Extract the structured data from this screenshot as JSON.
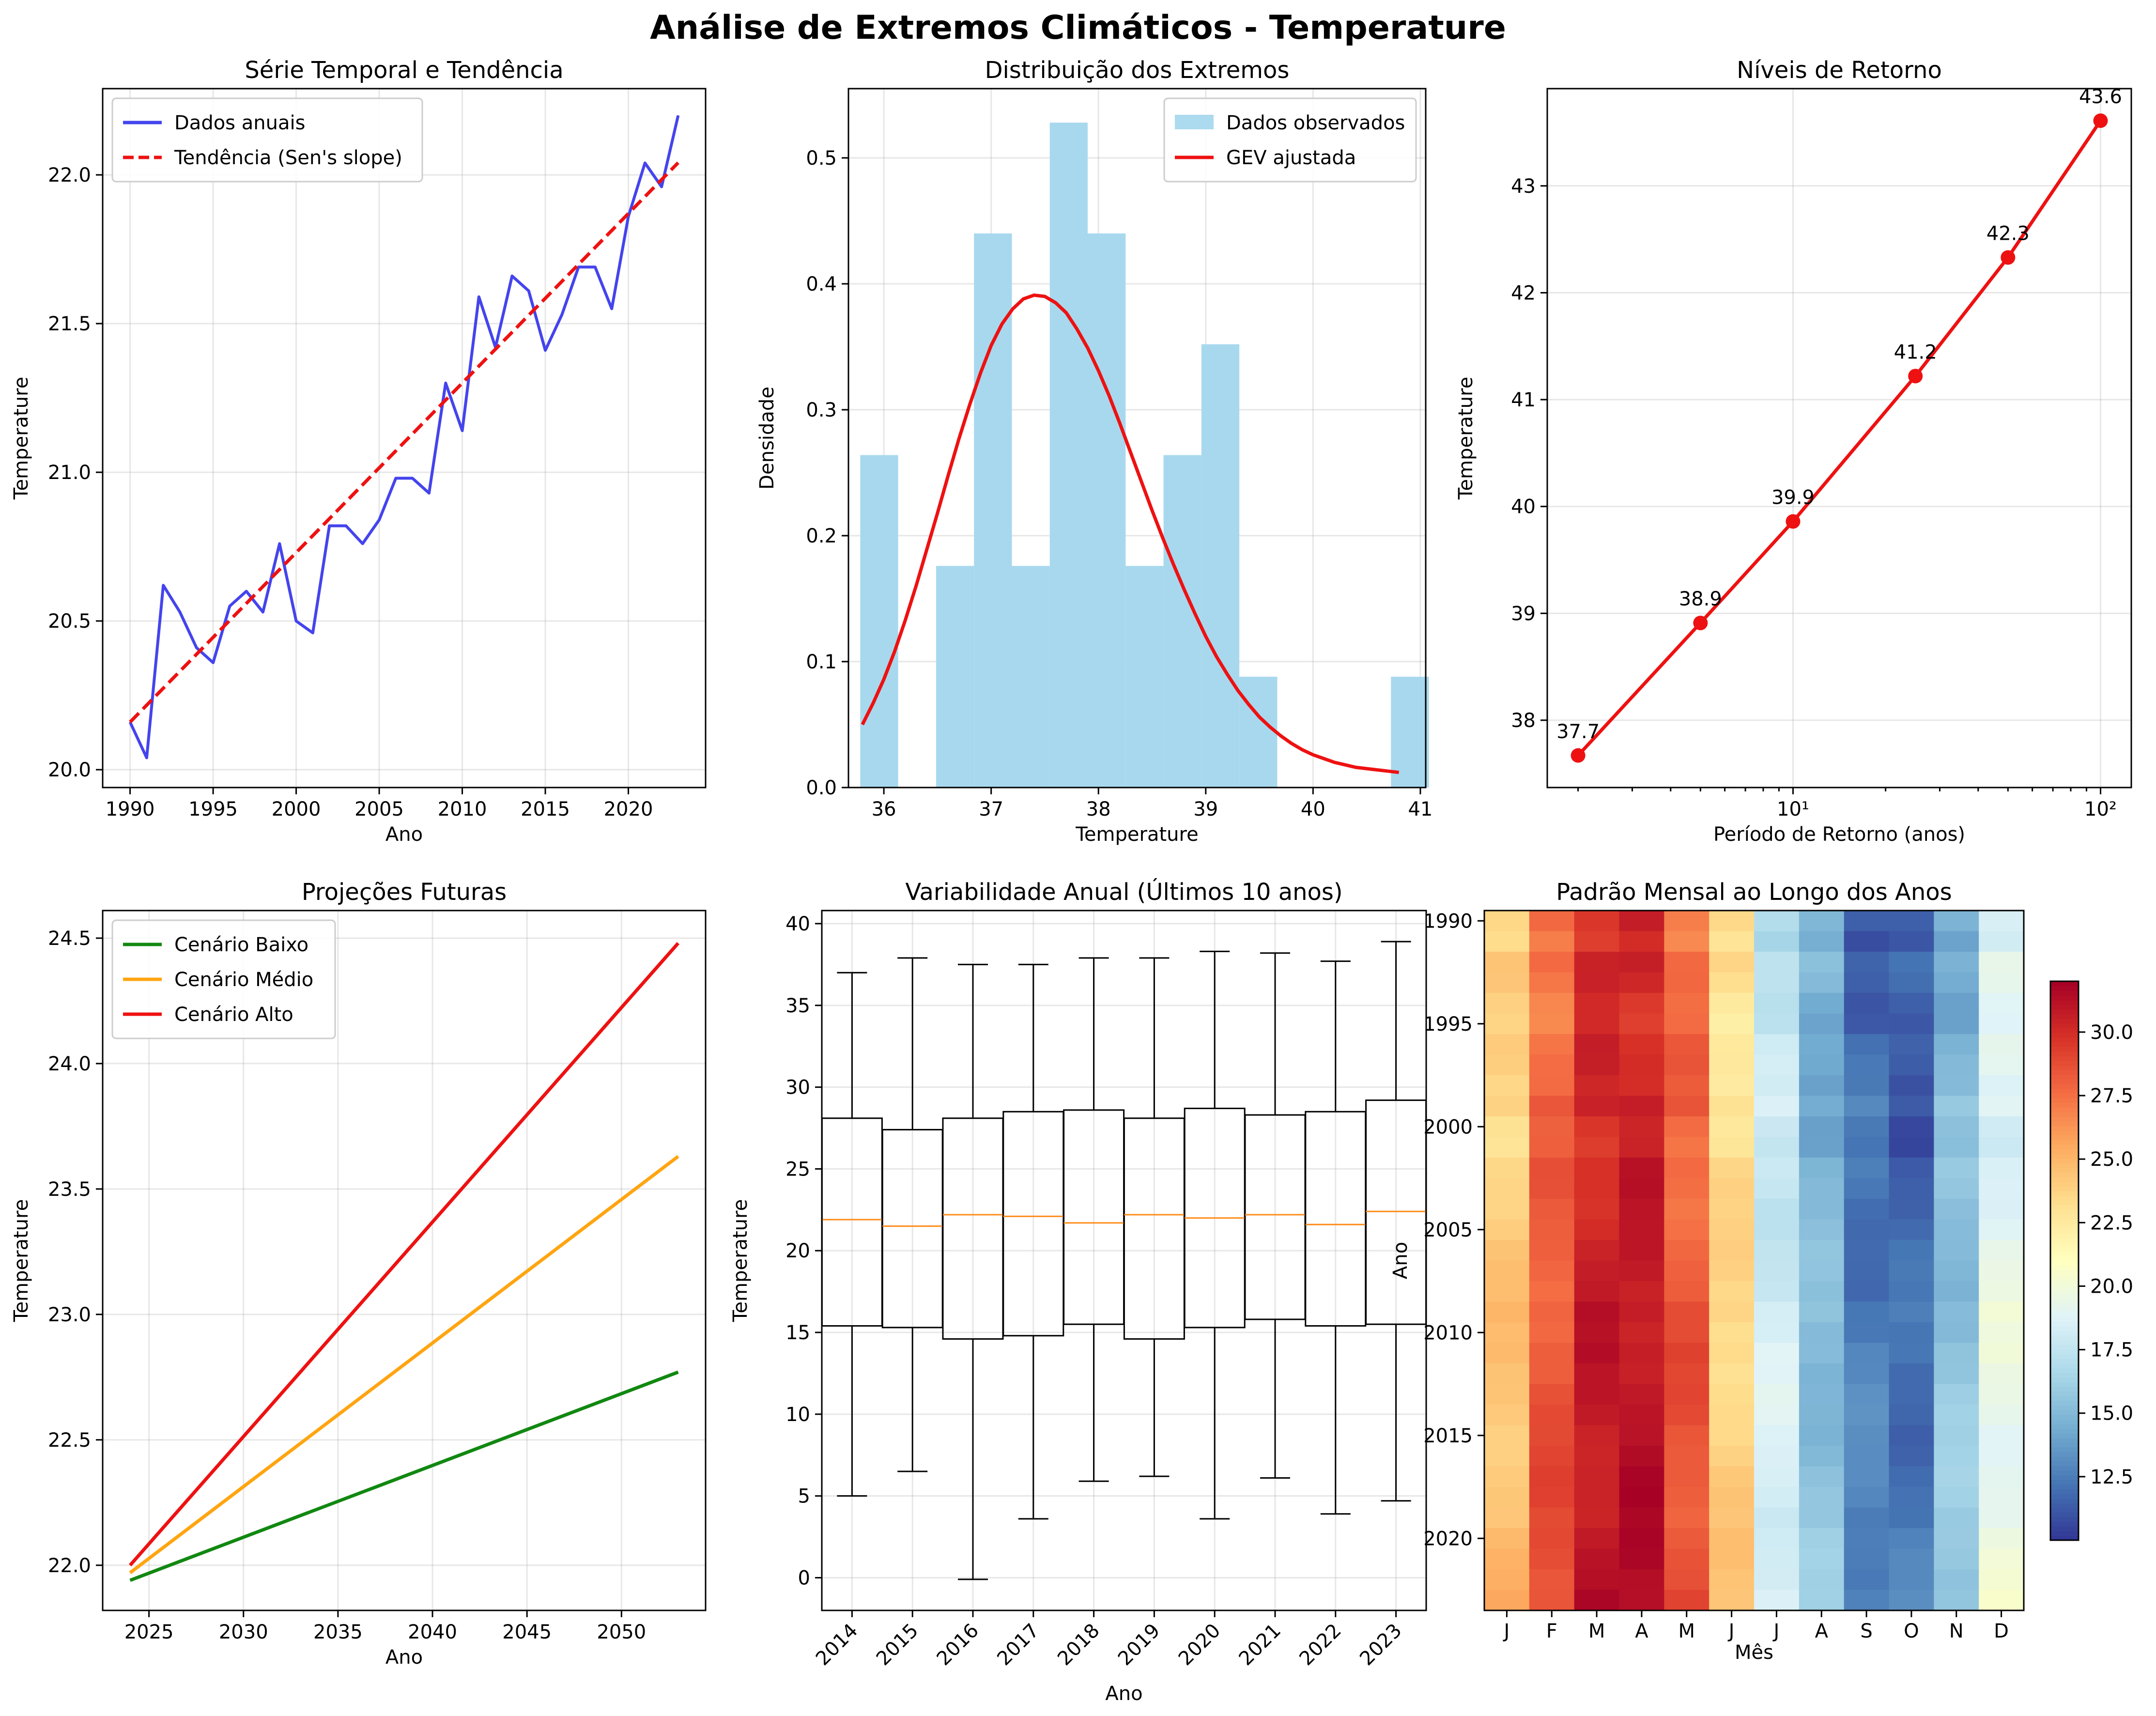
{
  "figure": {
    "title": "Análise de Extremos Climáticos - Temperature"
  },
  "colors": {
    "observed_line": "#4444ee",
    "trend": "#ee1111",
    "hist_fill": "#a8d8ee",
    "gev": "#ee1111",
    "return_line": "#ee1111",
    "low": "#118811",
    "medium": "#ffa511",
    "high": "#ee1111",
    "box": "#000000",
    "median": "#ff8c1a"
  },
  "chart_data": [
    {
      "id": "timeseries",
      "type": "line",
      "title": "Série Temporal e Tendência",
      "xlabel": "Ano",
      "ylabel": "Temperature",
      "xlim": [
        1988.35,
        2024.65
      ],
      "ylim": [
        19.94,
        22.29
      ],
      "xticks": [
        1990,
        1995,
        2000,
        2005,
        2010,
        2015,
        2020
      ],
      "yticks": [
        "20.0",
        "20.5",
        "21.0",
        "21.5",
        "22.0"
      ],
      "grid": true,
      "legend_position": "top-left",
      "x": [
        1990,
        1991,
        1992,
        1993,
        1994,
        1995,
        1996,
        1997,
        1998,
        1999,
        2000,
        2001,
        2002,
        2003,
        2004,
        2005,
        2006,
        2007,
        2008,
        2009,
        2010,
        2011,
        2012,
        2013,
        2014,
        2015,
        2016,
        2017,
        2018,
        2019,
        2020,
        2021,
        2022,
        2023
      ],
      "series": [
        {
          "name": "Dados anuais",
          "style": "solid",
          "values": [
            20.16,
            20.04,
            20.62,
            20.53,
            20.41,
            20.36,
            20.55,
            20.6,
            20.53,
            20.76,
            20.5,
            20.46,
            20.82,
            20.82,
            20.76,
            20.84,
            20.98,
            20.98,
            20.93,
            21.3,
            21.14,
            21.59,
            21.42,
            21.66,
            21.61,
            21.41,
            21.53,
            21.69,
            21.69,
            21.55,
            21.86,
            22.04,
            21.96,
            22.2
          ]
        },
        {
          "name": "Tendência (Sen's slope)",
          "style": "dashed",
          "values": [
            20.16,
            20.217,
            20.274,
            20.331,
            20.388,
            20.445,
            20.502,
            20.559,
            20.616,
            20.673,
            20.73,
            20.787,
            20.844,
            20.901,
            20.958,
            21.015,
            21.072,
            21.129,
            21.186,
            21.243,
            21.3,
            21.357,
            21.414,
            21.471,
            21.528,
            21.585,
            21.642,
            21.699,
            21.756,
            21.813,
            21.87,
            21.927,
            21.984,
            22.041
          ]
        }
      ]
    },
    {
      "id": "distribution",
      "type": "bar",
      "title": "Distribuição dos Extremos",
      "xlabel": "Temperature",
      "ylabel": "Densidade",
      "xlim": [
        35.67,
        41.05
      ],
      "ylim": [
        0,
        0.555
      ],
      "xticks": [
        36,
        37,
        38,
        39,
        40,
        41
      ],
      "yticks": [
        "0.0",
        "0.1",
        "0.2",
        "0.3",
        "0.4",
        "0.5"
      ],
      "grid": true,
      "legend_position": "top-right",
      "series_names": [
        "Dados observados",
        "GEV ajustada"
      ],
      "bin_start": 35.78,
      "bin_width": 0.3533,
      "hist_values": [
        0.264,
        0,
        0.176,
        0.44,
        0.176,
        0.528,
        0.44,
        0.176,
        0.264,
        0.352,
        0.088,
        0,
        0,
        0,
        0.088
      ],
      "gev_x": [
        35.8,
        35.9,
        36.0,
        36.1,
        36.2,
        36.3,
        36.4,
        36.5,
        36.6,
        36.7,
        36.8,
        36.9,
        37.0,
        37.1,
        37.2,
        37.3,
        37.4,
        37.5,
        37.6,
        37.7,
        37.8,
        37.9,
        38.0,
        38.1,
        38.2,
        38.3,
        38.4,
        38.5,
        38.6,
        38.7,
        38.8,
        38.9,
        39.0,
        39.1,
        39.2,
        39.3,
        39.4,
        39.5,
        39.6,
        39.7,
        39.8,
        39.9,
        40.0,
        40.1,
        40.2,
        40.3,
        40.4,
        40.5,
        40.6,
        40.7,
        40.8
      ],
      "gev_y": [
        0.05,
        0.067,
        0.086,
        0.108,
        0.133,
        0.16,
        0.189,
        0.218,
        0.248,
        0.277,
        0.304,
        0.329,
        0.351,
        0.368,
        0.38,
        0.388,
        0.391,
        0.39,
        0.385,
        0.377,
        0.364,
        0.349,
        0.331,
        0.311,
        0.289,
        0.266,
        0.243,
        0.22,
        0.198,
        0.177,
        0.157,
        0.138,
        0.12,
        0.104,
        0.09,
        0.077,
        0.066,
        0.056,
        0.048,
        0.041,
        0.035,
        0.03,
        0.026,
        0.023,
        0.02,
        0.018,
        0.016,
        0.015,
        0.014,
        0.013,
        0.012
      ]
    },
    {
      "id": "return_levels",
      "type": "line",
      "title": "Níveis de Retorno",
      "xlabel": "Período de Retorno (anos)",
      "ylabel": "Temperature",
      "xscale": "log",
      "xlim": [
        1.588,
        125.9
      ],
      "ylim": [
        37.37,
        43.91
      ],
      "xticks": [
        {
          "value": 10,
          "label": "10¹"
        },
        {
          "value": 100,
          "label": "10²"
        }
      ],
      "yticks": [
        "38",
        "39",
        "40",
        "41",
        "42",
        "43"
      ],
      "grid": true,
      "x": [
        2,
        5,
        10,
        25,
        50,
        100
      ],
      "values": [
        37.67,
        38.91,
        39.86,
        41.22,
        42.33,
        43.61
      ],
      "labels": [
        "37.7",
        "38.9",
        "39.9",
        "41.2",
        "42.3",
        "43.6"
      ]
    },
    {
      "id": "projections",
      "type": "line",
      "title": "Projeções Futuras",
      "xlabel": "Ano",
      "ylabel": "Temperature",
      "xlim": [
        2022.55,
        2054.45
      ],
      "ylim": [
        21.82,
        24.61
      ],
      "xticks": [
        2025,
        2030,
        2035,
        2040,
        2045,
        2050
      ],
      "yticks": [
        "22.0",
        "22.5",
        "23.0",
        "23.5",
        "24.0",
        "24.5"
      ],
      "grid": true,
      "legend_position": "top-left",
      "x": [
        2024,
        2053
      ],
      "series": [
        {
          "name": "Cenário Baixo",
          "values": [
            21.94,
            22.77
          ]
        },
        {
          "name": "Cenário Médio",
          "values": [
            21.97,
            23.63
          ]
        },
        {
          "name": "Cenário Alto",
          "values": [
            22.0,
            24.48
          ]
        }
      ]
    },
    {
      "id": "variability",
      "type": "bar",
      "title": "Variabilidade Anual (Últimos 10 anos)",
      "xlabel": "Ano",
      "ylabel": "Temperature",
      "xlim": [
        0.5,
        10.5
      ],
      "ylim": [
        -2.0,
        40.8
      ],
      "yticks": [
        "0",
        "5",
        "10",
        "15",
        "20",
        "25",
        "30",
        "35",
        "40"
      ],
      "grid": true,
      "categories": [
        "2014",
        "2015",
        "2016",
        "2017",
        "2018",
        "2019",
        "2020",
        "2021",
        "2022",
        "2023"
      ],
      "boxes": [
        {
          "min": 5.0,
          "q1": 15.4,
          "median": 21.9,
          "q3": 28.1,
          "max": 37.0
        },
        {
          "min": 6.5,
          "q1": 15.3,
          "median": 21.5,
          "q3": 27.4,
          "max": 37.9
        },
        {
          "min": -0.1,
          "q1": 14.6,
          "median": 22.2,
          "q3": 28.1,
          "max": 37.5
        },
        {
          "min": 3.6,
          "q1": 14.8,
          "median": 22.1,
          "q3": 28.5,
          "max": 37.5
        },
        {
          "min": 5.9,
          "q1": 15.5,
          "median": 21.7,
          "q3": 28.6,
          "max": 37.9
        },
        {
          "min": 6.2,
          "q1": 14.6,
          "median": 22.2,
          "q3": 28.1,
          "max": 37.9
        },
        {
          "min": 3.6,
          "q1": 15.3,
          "median": 22.0,
          "q3": 28.7,
          "max": 38.3
        },
        {
          "min": 6.1,
          "q1": 15.8,
          "median": 22.2,
          "q3": 28.3,
          "max": 38.2
        },
        {
          "min": 3.9,
          "q1": 15.4,
          "median": 21.6,
          "q3": 28.5,
          "max": 37.7
        },
        {
          "min": 4.7,
          "q1": 15.5,
          "median": 22.4,
          "q3": 29.2,
          "max": 38.9
        }
      ]
    },
    {
      "id": "monthly_pattern",
      "type": "heatmap",
      "title": "Padrão Mensal ao Longo dos Anos",
      "xlabel": "Mês",
      "ylabel": "Ano",
      "month_labels": [
        "J",
        "F",
        "M",
        "A",
        "M",
        "J",
        "J",
        "A",
        "S",
        "O",
        "N",
        "D"
      ],
      "year_start": 1990,
      "yticks": [
        "1990",
        "1995",
        "2000",
        "2005",
        "2010",
        "2015",
        "2020"
      ],
      "colorbar_range": [
        10.0,
        32.0
      ],
      "colorbar_ticks": [
        "12.5",
        "15.0",
        "17.5",
        "20.0",
        "22.5",
        "25.0",
        "27.5",
        "30.0"
      ],
      "colormap": "RdYlBu_r",
      "month_base": [
        23.6,
        27.6,
        29.9,
        30.2,
        27.6,
        22.9,
        17.5,
        14.4,
        11.8,
        11.2,
        14.8,
        18.6
      ],
      "year_offset": [
        0.0,
        -0.5,
        0.4,
        0.2,
        -0.3,
        -0.4,
        0.2,
        0.3,
        0.1,
        0.6,
        0.0,
        -0.1,
        0.5,
        0.5,
        0.3,
        0.4,
        0.6,
        0.6,
        0.5,
        0.9,
        0.7,
        1.0,
        0.8,
        1.0,
        1.0,
        0.8,
        0.9,
        1.1,
        1.1,
        0.9,
        1.2,
        1.3,
        1.2,
        1.4
      ]
    }
  ]
}
